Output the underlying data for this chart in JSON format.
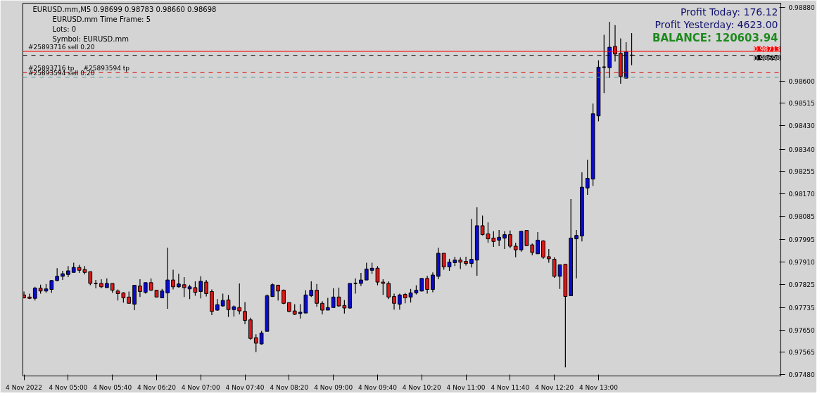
{
  "chart_data": {
    "type": "candlestick",
    "title": "EURUSD.mm,M5  0.98699 0.98783 0.98660 0.98698",
    "subtitle": "EURUSD.mm  Time Frame: 5",
    "annotations": [
      "Lots:  0",
      "Symbol: EURUSD.mm",
      "Profit Today: 176.12",
      "Profit Yesterday: 4623.00",
      "BALANCE: 120603.94",
      {
        "text": "#25893716 sell 0.20",
        "x": "2022-11-04T04:20",
        "y": 0.98713
      },
      {
        "text": "#25893716 tp",
        "x": "2022-11-04T04:20",
        "y": 0.98632
      },
      {
        "text": "#25893594 tp",
        "x": "2022-11-04T05:10",
        "y": 0.98632
      },
      {
        "text": "#25893594 sell 0.20",
        "x": "2022-11-04T04:20",
        "y": 0.98614
      }
    ],
    "ref_lines": [
      {
        "axis": "y",
        "value": 0.98713,
        "label": "0.98713",
        "color": "#ff0000",
        "line_style": "solid"
      },
      {
        "axis": "y",
        "value": 0.98698,
        "label": "0.98698",
        "color": "#000000",
        "line_style": "dashed"
      },
      {
        "axis": "y",
        "value": 0.98632,
        "color": "#e00000",
        "line_style": "dashed"
      },
      {
        "axis": "y",
        "value": 0.98614,
        "color": "#5f9ea0",
        "line_style": "dashed"
      }
    ],
    "xlim": [
      "2022-11-04T04:19",
      "2022-11-04T15:45"
    ],
    "ylim": [
      0.97475,
      0.98897
    ],
    "yticks": [
      {
        "value": 0.9888,
        "label": "0.98880"
      },
      {
        "value": 0.986,
        "label": "0.98600"
      },
      {
        "value": 0.98515,
        "label": "0.98515"
      },
      {
        "value": 0.9843,
        "label": "0.98430"
      },
      {
        "value": 0.9834,
        "label": "0.98340"
      },
      {
        "value": 0.98255,
        "label": "0.98255"
      },
      {
        "value": 0.9817,
        "label": "0.98170"
      },
      {
        "value": 0.98085,
        "label": "0.98085"
      },
      {
        "value": 0.97995,
        "label": "0.97995"
      },
      {
        "value": 0.9791,
        "label": "0.97910"
      },
      {
        "value": 0.97825,
        "label": "0.97825"
      },
      {
        "value": 0.97735,
        "label": "0.97735"
      },
      {
        "value": 0.9765,
        "label": "0.97650"
      },
      {
        "value": 0.97565,
        "label": "0.97565"
      },
      {
        "value": 0.9748,
        "label": "0.97480"
      }
    ],
    "xticks": [
      {
        "value": "2022-11-04T04:20",
        "label": "4 Nov 2022"
      },
      {
        "value": "2022-11-04T05:00",
        "label": "4 Nov 05:00"
      },
      {
        "value": "2022-11-04T05:40",
        "label": "4 Nov 05:40"
      },
      {
        "value": "2022-11-04T06:20",
        "label": "4 Nov 06:20"
      },
      {
        "value": "2022-11-04T07:00",
        "label": "4 Nov 07:00"
      },
      {
        "value": "2022-11-04T07:40",
        "label": "4 Nov 07:40"
      },
      {
        "value": "2022-11-04T08:20",
        "label": "4 Nov 08:20"
      },
      {
        "value": "2022-11-04T09:00",
        "label": "4 Nov 09:00"
      },
      {
        "value": "2022-11-04T09:40",
        "label": "4 Nov 09:40"
      },
      {
        "value": "2022-11-04T10:20",
        "label": "4 Nov 10:20"
      },
      {
        "value": "2022-11-04T11:00",
        "label": "4 Nov 11:00"
      },
      {
        "value": "2022-11-04T11:40",
        "label": "4 Nov 11:40"
      },
      {
        "value": "2022-11-04T12:20",
        "label": "4 Nov 12:20"
      },
      {
        "value": "2022-11-04T13:00",
        "label": "4 Nov 13:00"
      }
    ],
    "x": [
      "2022-11-04T04:20",
      "2022-11-04T04:25",
      "2022-11-04T04:30",
      "2022-11-04T04:35",
      "2022-11-04T04:40",
      "2022-11-04T04:45",
      "2022-11-04T04:50",
      "2022-11-04T04:55",
      "2022-11-04T05:00",
      "2022-11-04T05:05",
      "2022-11-04T05:10",
      "2022-11-04T05:15",
      "2022-11-04T05:20",
      "2022-11-04T05:25",
      "2022-11-04T05:30",
      "2022-11-04T05:35",
      "2022-11-04T05:40",
      "2022-11-04T05:45",
      "2022-11-04T05:50",
      "2022-11-04T05:55",
      "2022-11-04T06:00",
      "2022-11-04T06:05",
      "2022-11-04T06:10",
      "2022-11-04T06:15",
      "2022-11-04T06:20",
      "2022-11-04T06:25",
      "2022-11-04T06:30",
      "2022-11-04T06:35",
      "2022-11-04T06:40",
      "2022-11-04T06:45",
      "2022-11-04T06:50",
      "2022-11-04T06:55",
      "2022-11-04T07:00",
      "2022-11-04T07:05",
      "2022-11-04T07:10",
      "2022-11-04T07:15",
      "2022-11-04T07:20",
      "2022-11-04T07:25",
      "2022-11-04T07:30",
      "2022-11-04T07:35",
      "2022-11-04T07:40",
      "2022-11-04T07:45",
      "2022-11-04T07:50",
      "2022-11-04T07:55",
      "2022-11-04T08:00",
      "2022-11-04T08:05",
      "2022-11-04T08:10",
      "2022-11-04T08:15",
      "2022-11-04T08:20",
      "2022-11-04T08:25",
      "2022-11-04T08:30",
      "2022-11-04T08:35",
      "2022-11-04T08:40",
      "2022-11-04T08:45",
      "2022-11-04T08:50",
      "2022-11-04T08:55",
      "2022-11-04T09:00",
      "2022-11-04T09:05",
      "2022-11-04T09:10",
      "2022-11-04T09:15",
      "2022-11-04T09:20",
      "2022-11-04T09:25",
      "2022-11-04T09:30",
      "2022-11-04T09:35",
      "2022-11-04T09:40",
      "2022-11-04T09:45",
      "2022-11-04T09:50",
      "2022-11-04T09:55",
      "2022-11-04T10:00",
      "2022-11-04T10:05",
      "2022-11-04T10:10",
      "2022-11-04T10:15",
      "2022-11-04T10:20",
      "2022-11-04T10:25",
      "2022-11-04T10:30",
      "2022-11-04T10:35",
      "2022-11-04T10:40",
      "2022-11-04T10:45",
      "2022-11-04T10:50",
      "2022-11-04T10:55",
      "2022-11-04T11:00",
      "2022-11-04T11:05",
      "2022-11-04T11:10",
      "2022-11-04T11:15",
      "2022-11-04T11:20",
      "2022-11-04T11:25",
      "2022-11-04T11:30",
      "2022-11-04T11:35",
      "2022-11-04T11:40",
      "2022-11-04T11:45",
      "2022-11-04T11:50",
      "2022-11-04T11:55",
      "2022-11-04T12:00",
      "2022-11-04T12:05",
      "2022-11-04T12:10",
      "2022-11-04T12:15",
      "2022-11-04T12:20",
      "2022-11-04T12:25",
      "2022-11-04T12:30",
      "2022-11-04T12:35",
      "2022-11-04T12:40",
      "2022-11-04T12:45",
      "2022-11-04T12:50",
      "2022-11-04T12:55",
      "2022-11-04T13:00",
      "2022-11-04T13:05",
      "2022-11-04T13:10",
      "2022-11-04T13:15",
      "2022-11-04T13:20",
      "2022-11-04T13:25",
      "2022-11-04T13:30"
    ],
    "ohlc": [
      [
        0.97784,
        0.97797,
        0.97771,
        0.97773
      ],
      [
        0.97776,
        0.97789,
        0.97768,
        0.97771
      ],
      [
        0.97771,
        0.97815,
        0.97763,
        0.9781
      ],
      [
        0.9781,
        0.97823,
        0.97789,
        0.97799
      ],
      [
        0.97799,
        0.97826,
        0.97792,
        0.97807
      ],
      [
        0.97805,
        0.97841,
        0.97792,
        0.97839
      ],
      [
        0.97839,
        0.97886,
        0.97836,
        0.97855
      ],
      [
        0.97855,
        0.97876,
        0.97841,
        0.97865
      ],
      [
        0.97862,
        0.97894,
        0.97852,
        0.97876
      ],
      [
        0.9787,
        0.97907,
        0.9787,
        0.97889
      ],
      [
        0.97889,
        0.97899,
        0.97868,
        0.97878
      ],
      [
        0.97881,
        0.97894,
        0.97862,
        0.9787
      ],
      [
        0.97873,
        0.97873,
        0.97821,
        0.97828
      ],
      [
        0.97828,
        0.97841,
        0.9781,
        0.97828
      ],
      [
        0.97828,
        0.97844,
        0.9781,
        0.97815
      ],
      [
        0.97812,
        0.97847,
        0.97812,
        0.97828
      ],
      [
        0.97828,
        0.97828,
        0.97792,
        0.97802
      ],
      [
        0.97799,
        0.97805,
        0.97763,
        0.97789
      ],
      [
        0.97792,
        0.97794,
        0.97755,
        0.97773
      ],
      [
        0.97776,
        0.97797,
        0.97752,
        0.97752
      ],
      [
        0.97749,
        0.97821,
        0.97726,
        0.97821
      ],
      [
        0.97818,
        0.97844,
        0.97776,
        0.97797
      ],
      [
        0.97794,
        0.97831,
        0.97789,
        0.97831
      ],
      [
        0.97831,
        0.97847,
        0.97799,
        0.97802
      ],
      [
        0.97802,
        0.97802,
        0.97776,
        0.97776
      ],
      [
        0.97773,
        0.97807,
        0.97773,
        0.97799
      ],
      [
        0.97792,
        0.97964,
        0.97731,
        0.97841
      ],
      [
        0.97841,
        0.9788,
        0.97805,
        0.97815
      ],
      [
        0.97815,
        0.97865,
        0.97812,
        0.97826
      ],
      [
        0.97823,
        0.97852,
        0.97776,
        0.97812
      ],
      [
        0.97807,
        0.97823,
        0.97768,
        0.97815
      ],
      [
        0.97812,
        0.97836,
        0.97781,
        0.97794
      ],
      [
        0.97797,
        0.97855,
        0.97771,
        0.97836
      ],
      [
        0.97833,
        0.97841,
        0.97778,
        0.97789
      ],
      [
        0.97797,
        0.97805,
        0.97707,
        0.97721
      ],
      [
        0.97726,
        0.97768,
        0.97723,
        0.97747
      ],
      [
        0.97742,
        0.97789,
        0.97739,
        0.97763
      ],
      [
        0.97765,
        0.97784,
        0.977,
        0.97728
      ],
      [
        0.97728,
        0.97744,
        0.97702,
        0.97739
      ],
      [
        0.97736,
        0.97828,
        0.9771,
        0.97723
      ],
      [
        0.97721,
        0.97757,
        0.97673,
        0.97687
      ],
      [
        0.97689,
        0.97697,
        0.97613,
        0.97618
      ],
      [
        0.97621,
        0.97634,
        0.97566,
        0.976
      ],
      [
        0.97597,
        0.97647,
        0.97595,
        0.97639
      ],
      [
        0.97645,
        0.97786,
        0.97645,
        0.97781
      ],
      [
        0.97778,
        0.97828,
        0.97776,
        0.97823
      ],
      [
        0.97821,
        0.97823,
        0.97763,
        0.97799
      ],
      [
        0.97802,
        0.97805,
        0.97749,
        0.97752
      ],
      [
        0.97755,
        0.97755,
        0.97718,
        0.97721
      ],
      [
        0.97723,
        0.97749,
        0.97707,
        0.9771
      ],
      [
        0.97713,
        0.97749,
        0.97694,
        0.97718
      ],
      [
        0.97715,
        0.97802,
        0.97715,
        0.97784
      ],
      [
        0.97781,
        0.97836,
        0.97776,
        0.97802
      ],
      [
        0.97802,
        0.97826,
        0.97739,
        0.97752
      ],
      [
        0.97752,
        0.9776,
        0.9771,
        0.97726
      ],
      [
        0.97726,
        0.97773,
        0.97726,
        0.97736
      ],
      [
        0.97736,
        0.9781,
        0.97736,
        0.97776
      ],
      [
        0.97776,
        0.97812,
        0.97739,
        0.97742
      ],
      [
        0.97744,
        0.97765,
        0.97713,
        0.97734
      ],
      [
        0.97734,
        0.97828,
        0.97731,
        0.97828
      ],
      [
        0.97828,
        0.97847,
        0.97789,
        0.97828
      ],
      [
        0.97828,
        0.97868,
        0.97818,
        0.97841
      ],
      [
        0.97841,
        0.97907,
        0.97841,
        0.97883
      ],
      [
        0.97878,
        0.97907,
        0.97865,
        0.97886
      ],
      [
        0.97886,
        0.97894,
        0.97821,
        0.97833
      ],
      [
        0.97833,
        0.97844,
        0.97784,
        0.97828
      ],
      [
        0.97828,
        0.97836,
        0.97768,
        0.97776
      ],
      [
        0.97778,
        0.97789,
        0.97728,
        0.97752
      ],
      [
        0.97749,
        0.97789,
        0.97728,
        0.97784
      ],
      [
        0.97786,
        0.97792,
        0.97752,
        0.97773
      ],
      [
        0.97776,
        0.97807,
        0.97755,
        0.97792
      ],
      [
        0.97792,
        0.97821,
        0.97786,
        0.97802
      ],
      [
        0.97799,
        0.97847,
        0.97797,
        0.97847
      ],
      [
        0.97847,
        0.97857,
        0.97789,
        0.97805
      ],
      [
        0.97805,
        0.9787,
        0.97794,
        0.9786
      ],
      [
        0.97855,
        0.97964,
        0.97844,
        0.97943
      ],
      [
        0.97943,
        0.97943,
        0.9788,
        0.97891
      ],
      [
        0.97891,
        0.97922,
        0.97876,
        0.97909
      ],
      [
        0.97907,
        0.9793,
        0.97894,
        0.97917
      ],
      [
        0.97917,
        0.97928,
        0.97883,
        0.97909
      ],
      [
        0.97912,
        0.9793,
        0.97896,
        0.97904
      ],
      [
        0.97904,
        0.98074,
        0.97889,
        0.9792
      ],
      [
        0.97917,
        0.98119,
        0.97857,
        0.98048
      ],
      [
        0.98048,
        0.98087,
        0.98011,
        0.98014
      ],
      [
        0.98017,
        0.98061,
        0.97983,
        0.97998
      ],
      [
        0.98001,
        0.98027,
        0.97967,
        0.97988
      ],
      [
        0.97993,
        0.98032,
        0.9797,
        0.98004
      ],
      [
        0.98001,
        0.98027,
        0.97959,
        0.98014
      ],
      [
        0.98014,
        0.9803,
        0.97962,
        0.9797
      ],
      [
        0.9797,
        0.97983,
        0.97928,
        0.97956
      ],
      [
        0.97956,
        0.98027,
        0.97949,
        0.98027
      ],
      [
        0.9803,
        0.9803,
        0.9797,
        0.97972
      ],
      [
        0.97975,
        0.9798,
        0.97935,
        0.97946
      ],
      [
        0.97941,
        0.98024,
        0.97941,
        0.97993
      ],
      [
        0.9799,
        0.97993,
        0.97922,
        0.97928
      ],
      [
        0.9793,
        0.97959,
        0.97907,
        0.97922
      ],
      [
        0.9792,
        0.97928,
        0.97849,
        0.97855
      ],
      [
        0.97855,
        0.97899,
        0.97807,
        0.97899
      ],
      [
        0.97901,
        0.97901,
        0.97508,
        0.97778
      ],
      [
        0.97781,
        0.9815,
        0.97781,
        0.98001
      ],
      [
        0.97998,
        0.98032,
        0.97847,
        0.98011
      ],
      [
        0.98009,
        0.98252,
        0.97988,
        0.98195
      ],
      [
        0.98192,
        0.983,
        0.98166,
        0.98229
      ],
      [
        0.98226,
        0.98514,
        0.982,
        0.98475
      ],
      [
        0.98467,
        0.98679,
        0.98446,
        0.98653
      ],
      [
        0.98653,
        0.98776,
        0.98554,
        0.98653
      ],
      [
        0.98651,
        0.98826,
        0.98611,
        0.98729
      ],
      [
        0.98732,
        0.98813,
        0.98674,
        0.98703
      ],
      [
        0.98706,
        0.98763,
        0.9859,
        0.98617
      ],
      [
        0.98611,
        0.98748,
        0.98609,
        0.98711
      ],
      [
        0.98699,
        0.98783,
        0.9866,
        0.98698
      ]
    ]
  }
}
